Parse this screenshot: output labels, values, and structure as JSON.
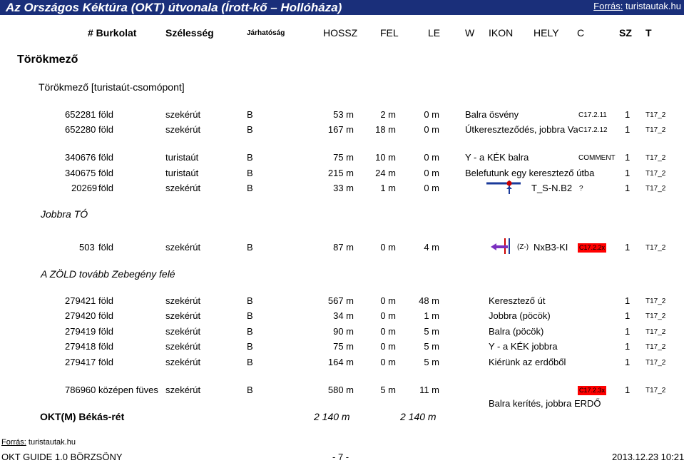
{
  "title": "Az Országos Kéktúra (OKT) útvonala (Írott-kő – Hollóháza)",
  "source_label": "Forrás:",
  "source_site": "turistautak.hu",
  "headers": {
    "burkolat": "# Burkolat",
    "szelesseg": "Szélesség",
    "jarhatosag": "Járhatóság",
    "hossz": "HOSSZ",
    "fel": "FEL",
    "le": "LE",
    "w": "W",
    "ikon": "IKON",
    "hely": "HELY",
    "c": "C",
    "sz": "SZ",
    "t": "T"
  },
  "place": "Törökmező",
  "node": "Törökmező [turistaút-csomópont]",
  "rows": [
    {
      "id": "652281",
      "surf": "föld",
      "type": "szekérút",
      "cls": "B",
      "len": "53 m",
      "up": "2 m",
      "down": "0 m",
      "desc": "Balra ösvény",
      "c": "C17.2.11",
      "sz": "1",
      "t": "T17_2"
    },
    {
      "id": "652280",
      "surf": "föld",
      "type": "szekérút",
      "cls": "B",
      "len": "167 m",
      "up": "18 m",
      "down": "0 m",
      "desc": "Útkereszteződés, jobbra Vadász",
      "c": "C17.2.12",
      "sz": "1",
      "t": "T17_2"
    },
    {
      "id": "340676",
      "surf": "föld",
      "type": "turistaút",
      "cls": "B",
      "len": "75 m",
      "up": "10 m",
      "down": "0 m",
      "desc": "Y - a KÉK balra",
      "c": "COMMENT",
      "sz": "1",
      "t": "T17_2"
    },
    {
      "id": "340675",
      "surf": "föld",
      "type": "turistaút",
      "cls": "B",
      "len": "215 m",
      "up": "24 m",
      "down": "0 m",
      "desc": "Belefutunk egy keresztező útba",
      "c": "",
      "sz": "1",
      "t": "T17_2"
    },
    {
      "id": "20269",
      "surf": "föld",
      "type": "szekérút",
      "cls": "B",
      "len": "33 m",
      "up": "1 m",
      "down": "0 m",
      "desc": "T_S-N.B2",
      "c": "?",
      "sz": "1",
      "t": "T17_2"
    }
  ],
  "jobbra_to": "Jobbra TÓ",
  "row503": {
    "id": "503",
    "surf": "föld",
    "type": "szekérút",
    "cls": "B",
    "len": "87 m",
    "up": "0 m",
    "down": "4 m",
    "z": "(Z-)",
    "desc": "NxB3-KI",
    "c": "C17.2.2x",
    "sz": "1",
    "t": "T17_2"
  },
  "zold": "A ZÖLD tovább Zebegény felé",
  "rows2": [
    {
      "id": "279421",
      "surf": "föld",
      "type": "szekérút",
      "cls": "B",
      "len": "567 m",
      "up": "0 m",
      "down": "48 m",
      "desc": "Keresztező út",
      "sz": "1",
      "t": "T17_2"
    },
    {
      "id": "279420",
      "surf": "föld",
      "type": "szekérút",
      "cls": "B",
      "len": "34 m",
      "up": "0 m",
      "down": "1 m",
      "desc": "Jobbra (pöcök)",
      "sz": "1",
      "t": "T17_2"
    },
    {
      "id": "279419",
      "surf": "föld",
      "type": "szekérút",
      "cls": "B",
      "len": "90 m",
      "up": "0 m",
      "down": "5 m",
      "desc": "Balra (pöcök)",
      "sz": "1",
      "t": "T17_2"
    },
    {
      "id": "279418",
      "surf": "föld",
      "type": "szekérút",
      "cls": "B",
      "len": "75 m",
      "up": "0 m",
      "down": "5 m",
      "desc": "Y - a KÉK jobbra",
      "sz": "1",
      "t": "T17_2"
    },
    {
      "id": "279417",
      "surf": "föld",
      "type": "szekérút",
      "cls": "B",
      "len": "164 m",
      "up": "0 m",
      "down": "5 m",
      "desc": "Kiérünk az erdőből",
      "sz": "1",
      "t": "T17_2"
    }
  ],
  "row786": {
    "id": "786960",
    "surf": "középen füves",
    "type": "szekérút",
    "cls": "B",
    "len": "580 m",
    "up": "5 m",
    "down": "11 m",
    "desc": "Balra kerítés, jobbra ERDŐ",
    "c": "C17.2.3x",
    "sz": "1",
    "t": "T17_2"
  },
  "okt": {
    "label": "OKT(M) Békás-rét",
    "len": "2 140 m",
    "total": "2 140 m"
  },
  "footer": {
    "source_label": "Forrás:",
    "source_site": "turistautak.hu",
    "guide": "OKT GUIDE 1.0 BÖRZSÖNY",
    "page": "- 7 -",
    "date": "2013.12.23  10:21"
  },
  "colors": {
    "title_bg": "#1a2f7a",
    "badge": "#ff0000",
    "arrow": "#7b2fbf",
    "marker": "#cc0000",
    "pole": "#1a3a9a"
  }
}
